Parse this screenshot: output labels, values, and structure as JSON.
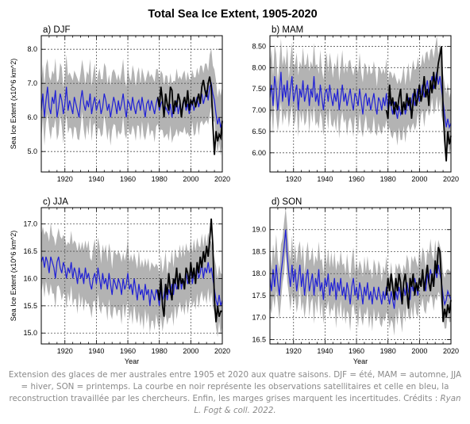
{
  "figure": {
    "title": "Total Sea Ice Extent, 1905-2020",
    "colors": {
      "reconstruction": "#1f1fd6",
      "observations": "#000000",
      "uncertainty": "#b3b3b3",
      "grid": "#555555"
    }
  },
  "chart_data": [
    {
      "type": "line",
      "panel_label": "a) DJF",
      "xlim": [
        1905,
        2020
      ],
      "ylim": [
        4.4,
        8.4
      ],
      "xticks": [
        1920,
        1940,
        1960,
        1980,
        2000,
        2020
      ],
      "yticks": [
        5.0,
        6.0,
        7.0,
        8.0
      ],
      "ytick_labels": [
        "5.0",
        "6.0",
        "7.0",
        "8.0"
      ],
      "xlabel": "",
      "ylabel": "Sea Ice Extent (x10^6 km^2)",
      "reconstruction": {
        "start_year": 1905,
        "mean": 6.4,
        "amplitude": 0.35,
        "seed": 11,
        "values": [
          6.2,
          6.7,
          6.0,
          6.5,
          6.9,
          6.3,
          6.1,
          6.6,
          6.4,
          6.8,
          6.0,
          6.3,
          6.7,
          6.5,
          6.1,
          6.4,
          6.9,
          6.2,
          6.5,
          6.3,
          6.1,
          6.6,
          6.4,
          6.2,
          6.0,
          6.5,
          6.8,
          6.4,
          6.2,
          6.5,
          6.3,
          6.7,
          6.1,
          6.4,
          6.6,
          6.2,
          6.4,
          6.5,
          6.1,
          6.3,
          6.7,
          6.5,
          6.2,
          6.4,
          6.0,
          6.3,
          6.6,
          6.4,
          6.1,
          6.5,
          6.2,
          6.4,
          6.7,
          6.3,
          6.0,
          6.5,
          6.4,
          6.2,
          6.6,
          6.3,
          6.1,
          6.4,
          6.5,
          6.2,
          6.6,
          6.3,
          6.0,
          6.4,
          6.5,
          6.2,
          6.5,
          6.3,
          6.1,
          6.4,
          6.6,
          6.2,
          6.4,
          6.5,
          6.1,
          6.3,
          6.2,
          6.1,
          6.4,
          6.0,
          6.3,
          6.2,
          6.5,
          6.1,
          6.4,
          6.2,
          6.3,
          6.6,
          6.2,
          6.4,
          6.1,
          6.3,
          6.5,
          6.2,
          6.4,
          6.6,
          6.3,
          6.5,
          6.7,
          6.4,
          6.6,
          6.8,
          6.5,
          6.9,
          7.0,
          6.7,
          6.5,
          6.1,
          5.8,
          6.0,
          5.7,
          5.9
        ]
      },
      "observations": {
        "start_year": 1979,
        "values": [
          6.6,
          6.3,
          6.9,
          6.5,
          6.0,
          6.7,
          6.4,
          6.2,
          6.9,
          6.8,
          6.1,
          6.5,
          6.3,
          6.7,
          6.5,
          6.0,
          6.4,
          6.6,
          6.3,
          6.8,
          6.2,
          6.5,
          6.4,
          6.6,
          6.3,
          6.5,
          6.7,
          6.4,
          6.9,
          7.1,
          6.8,
          6.6,
          7.0,
          7.2,
          6.9,
          5.8,
          4.9,
          5.6,
          5.3,
          5.5,
          5.4,
          5.9
        ]
      },
      "uncertainty": {
        "lower_offset": 0.75,
        "upper_offset": 0.9
      }
    },
    {
      "type": "line",
      "panel_label": "b) MAM",
      "xlim": [
        1905,
        2020
      ],
      "ylim": [
        5.55,
        8.75
      ],
      "xticks": [
        1920,
        1940,
        1960,
        1980,
        2000,
        2020
      ],
      "yticks": [
        6.0,
        6.5,
        7.0,
        7.5,
        8.0,
        8.5
      ],
      "ytick_labels": [
        "6.00",
        "6.50",
        "7.00",
        "7.50",
        "8.00",
        "8.50"
      ],
      "xlabel": "",
      "ylabel": "",
      "reconstruction": {
        "start_year": 1905,
        "values": [
          7.3,
          7.6,
          7.1,
          7.8,
          7.5,
          7.0,
          7.4,
          7.9,
          7.2,
          7.6,
          7.3,
          7.7,
          7.1,
          7.5,
          7.8,
          7.2,
          7.4,
          7.6,
          7.0,
          7.5,
          7.3,
          7.7,
          7.2,
          7.4,
          7.6,
          7.1,
          7.5,
          7.3,
          7.8,
          7.2,
          7.4,
          7.1,
          7.6,
          7.3,
          7.0,
          7.4,
          7.5,
          7.2,
          7.6,
          7.3,
          7.1,
          7.4,
          7.2,
          7.5,
          7.0,
          7.3,
          7.6,
          7.2,
          7.4,
          7.1,
          7.3,
          7.5,
          7.2,
          7.0,
          7.4,
          7.3,
          7.1,
          7.5,
          7.2,
          6.9,
          7.3,
          7.4,
          7.1,
          7.3,
          7.0,
          7.2,
          7.4,
          7.1,
          6.9,
          7.3,
          7.2,
          7.0,
          7.3,
          7.1,
          7.4,
          7.0,
          7.2,
          7.1,
          6.9,
          7.2,
          7.0,
          6.8,
          7.1,
          6.9,
          7.0,
          7.2,
          6.9,
          7.1,
          7.3,
          7.0,
          7.2,
          7.4,
          7.1,
          7.3,
          7.5,
          7.2,
          7.4,
          7.6,
          7.3,
          7.5,
          7.7,
          7.4,
          7.6,
          7.8,
          7.5,
          7.7,
          7.9,
          7.6,
          7.8,
          7.5,
          7.2,
          6.9,
          6.6,
          6.8,
          6.6,
          6.7
        ]
      },
      "observations": {
        "start_year": 1979,
        "values": [
          7.0,
          6.8,
          7.6,
          7.1,
          7.3,
          6.9,
          7.2,
          7.0,
          7.3,
          7.5,
          6.9,
          7.2,
          7.0,
          7.4,
          7.1,
          7.3,
          6.8,
          7.2,
          7.5,
          7.1,
          7.3,
          7.6,
          7.2,
          7.4,
          7.8,
          7.3,
          7.5,
          7.1,
          7.7,
          7.4,
          7.9,
          7.5,
          7.8,
          8.1,
          8.3,
          8.5,
          7.0,
          6.3,
          5.8,
          6.5,
          6.2,
          6.4
        ]
      },
      "uncertainty": {
        "lower_offset": 0.6,
        "upper_offset": 0.75
      }
    },
    {
      "type": "line",
      "panel_label": "c) JJA",
      "xlim": [
        1905,
        2020
      ],
      "ylim": [
        14.8,
        17.3
      ],
      "xticks": [
        1920,
        1940,
        1960,
        1980,
        2000,
        2020
      ],
      "yticks": [
        15.0,
        15.5,
        16.0,
        16.5,
        17.0
      ],
      "ytick_labels": [
        "15.0",
        "15.5",
        "16.0",
        "16.5",
        "17.0"
      ],
      "xlabel": "Year",
      "ylabel": "Sea Ice Extent (x10^6 km^2)",
      "reconstruction": {
        "start_year": 1905,
        "values": [
          16.3,
          16.4,
          16.2,
          16.4,
          16.3,
          16.1,
          16.4,
          16.3,
          16.2,
          16.0,
          16.3,
          16.4,
          16.2,
          16.1,
          16.3,
          16.2,
          16.0,
          16.2,
          16.1,
          16.3,
          16.0,
          16.2,
          16.1,
          15.9,
          16.2,
          16.0,
          16.1,
          15.9,
          16.2,
          16.0,
          16.1,
          15.9,
          15.8,
          16.0,
          16.1,
          15.9,
          16.2,
          16.0,
          15.8,
          16.1,
          15.9,
          16.0,
          15.8,
          16.1,
          15.9,
          15.7,
          16.0,
          15.9,
          15.8,
          16.0,
          15.9,
          15.7,
          16.0,
          15.8,
          15.9,
          16.1,
          15.8,
          15.9,
          15.7,
          16.0,
          15.8,
          15.6,
          15.9,
          15.7,
          15.8,
          15.6,
          15.9,
          15.7,
          15.8,
          15.5,
          15.8,
          15.7,
          15.6,
          15.8,
          15.7,
          15.5,
          15.8,
          15.6,
          15.7,
          15.9,
          15.6,
          15.8,
          15.7,
          15.9,
          15.7,
          16.0,
          15.8,
          15.9,
          16.1,
          15.8,
          16.0,
          15.9,
          16.1,
          15.9,
          16.0,
          16.2,
          15.9,
          16.1,
          16.0,
          16.2,
          16.0,
          16.1,
          16.3,
          16.0,
          16.2,
          16.1,
          16.3,
          16.1,
          16.2,
          16.0,
          15.8,
          15.6,
          15.5,
          15.7,
          15.5,
          15.6
        ]
      },
      "observations": {
        "start_year": 1979,
        "values": [
          15.8,
          15.6,
          16.0,
          15.5,
          15.3,
          15.9,
          15.7,
          16.1,
          15.8,
          15.6,
          16.0,
          15.9,
          16.2,
          15.8,
          16.1,
          15.9,
          16.0,
          15.8,
          16.2,
          16.1,
          15.9,
          16.3,
          16.0,
          16.2,
          15.9,
          16.3,
          16.1,
          16.4,
          16.2,
          16.5,
          16.3,
          16.6,
          16.4,
          16.7,
          17.1,
          16.6,
          15.6,
          15.2,
          15.5,
          15.3,
          15.4,
          15.4
        ]
      },
      "uncertainty": {
        "lower_offset": 0.5,
        "upper_offset": 0.55
      }
    },
    {
      "type": "line",
      "panel_label": "d) SON",
      "xlim": [
        1905,
        2020
      ],
      "ylim": [
        16.4,
        19.5
      ],
      "xticks": [
        1920,
        1940,
        1960,
        1980,
        2000,
        2020
      ],
      "yticks": [
        16.5,
        17.0,
        17.5,
        18.0,
        18.5,
        19.0
      ],
      "ytick_labels": [
        "16.5",
        "17.0",
        "17.5",
        "18.0",
        "18.5",
        "19.0"
      ],
      "xlabel": "Year",
      "ylabel": "",
      "reconstruction": {
        "start_year": 1905,
        "values": [
          17.9,
          17.6,
          18.1,
          17.7,
          18.2,
          17.8,
          17.5,
          18.0,
          18.3,
          18.6,
          19.0,
          18.4,
          18.0,
          17.7,
          18.2,
          17.8,
          18.1,
          17.6,
          17.9,
          18.2,
          17.7,
          18.0,
          17.5,
          17.9,
          18.1,
          17.6,
          17.8,
          18.0,
          17.5,
          17.9,
          17.7,
          18.1,
          17.6,
          17.8,
          17.4,
          17.9,
          17.7,
          18.0,
          17.5,
          17.8,
          17.6,
          17.9,
          17.4,
          17.8,
          17.6,
          17.9,
          17.5,
          17.7,
          17.4,
          17.8,
          17.6,
          17.3,
          17.7,
          17.9,
          17.5,
          17.7,
          17.4,
          17.8,
          17.6,
          17.3,
          17.7,
          17.5,
          17.8,
          17.4,
          17.6,
          17.3,
          17.7,
          17.5,
          17.4,
          17.7,
          17.5,
          17.3,
          17.6,
          17.4,
          17.7,
          17.5,
          17.3,
          17.6,
          17.4,
          17.2,
          17.6,
          17.4,
          17.7,
          17.5,
          17.3,
          17.7,
          17.5,
          17.8,
          17.6,
          17.4,
          17.8,
          17.6,
          17.9,
          17.7,
          17.5,
          17.9,
          17.7,
          18.0,
          17.8,
          17.6,
          18.0,
          17.8,
          18.1,
          17.9,
          17.7,
          18.1,
          17.9,
          18.2,
          18.0,
          17.8,
          17.5,
          17.3,
          17.4,
          17.6,
          17.5,
          17.4
        ]
      },
      "observations": {
        "start_year": 1979,
        "values": [
          17.5,
          17.9,
          17.6,
          18.0,
          17.7,
          17.4,
          17.9,
          17.6,
          18.0,
          17.8,
          17.3,
          17.8,
          18.0,
          17.6,
          17.2,
          17.9,
          17.7,
          18.0,
          17.5,
          17.8,
          17.6,
          17.9,
          17.7,
          18.1,
          17.6,
          17.9,
          18.2,
          17.8,
          17.6,
          18.0,
          17.7,
          18.3,
          18.0,
          18.6,
          18.5,
          17.8,
          16.9,
          17.2,
          17.0,
          17.3,
          17.1,
          17.4
        ]
      },
      "uncertainty": {
        "lower_offset": 0.55,
        "upper_offset": 0.6
      }
    }
  ],
  "caption": {
    "text": "Extension des glaces de mer australes entre 1905 et 2020 aux quatre saisons. DJF = été, MAM = automne, JJA = hiver, SON = printemps. La courbe en noir représente les observations satellitaires et celle en bleu, la reconstruction travaillée par les chercheurs. Enfin, les marges grises marquent les incertitudes. Crédits : ",
    "credit": "Ryan L. Fogt & coll. 2022."
  }
}
